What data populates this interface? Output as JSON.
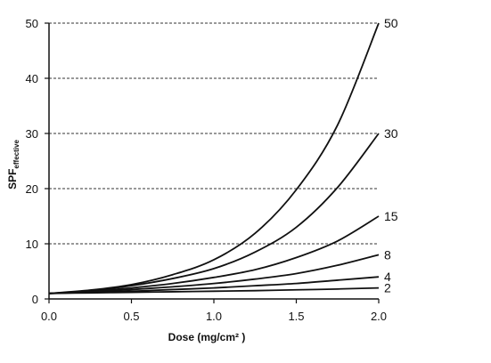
{
  "chart_data": {
    "type": "line",
    "xlabel": "Dose (mg/cm² )",
    "ylabel_main": "SPF",
    "ylabel_sub": "effective",
    "xlim": [
      0.0,
      2.0
    ],
    "ylim": [
      0,
      50
    ],
    "xticks": [
      "0.0",
      "0.5",
      "1.0",
      "1.5",
      "2.0"
    ],
    "yticks": [
      "0",
      "10",
      "20",
      "30",
      "40",
      "50"
    ],
    "grid": "horizontal dashed",
    "series": [
      {
        "name": "50",
        "x": [
          0,
          0.25,
          0.5,
          0.75,
          1.0,
          1.25,
          1.5,
          1.75,
          2.0
        ],
        "y": [
          1.0,
          1.6,
          2.6,
          4.4,
          7.1,
          11.9,
          19.8,
          31.5,
          50.0
        ]
      },
      {
        "name": "30",
        "x": [
          0,
          0.25,
          0.5,
          0.75,
          1.0,
          1.25,
          1.5,
          1.75,
          2.0
        ],
        "y": [
          1.0,
          1.5,
          2.4,
          3.7,
          5.5,
          8.5,
          13.0,
          20.2,
          30.0
        ]
      },
      {
        "name": "15",
        "x": [
          0,
          0.25,
          0.5,
          0.75,
          1.0,
          1.25,
          1.5,
          1.75,
          2.0
        ],
        "y": [
          1.0,
          1.4,
          2.0,
          2.8,
          3.9,
          5.3,
          7.5,
          10.5,
          15.0
        ]
      },
      {
        "name": "8",
        "x": [
          0,
          0.25,
          0.5,
          0.75,
          1.0,
          1.25,
          1.5,
          1.75,
          2.0
        ],
        "y": [
          1.0,
          1.3,
          1.7,
          2.2,
          2.8,
          3.6,
          4.6,
          6.1,
          8.0
        ]
      },
      {
        "name": "4",
        "x": [
          0,
          0.25,
          0.5,
          0.75,
          1.0,
          1.25,
          1.5,
          1.75,
          2.0
        ],
        "y": [
          1.0,
          1.2,
          1.4,
          1.7,
          2.0,
          2.4,
          2.8,
          3.4,
          4.0
        ]
      },
      {
        "name": "2",
        "x": [
          0,
          0.25,
          0.5,
          0.75,
          1.0,
          1.25,
          1.5,
          1.75,
          2.0
        ],
        "y": [
          1.0,
          1.1,
          1.2,
          1.3,
          1.4,
          1.5,
          1.65,
          1.8,
          2.0
        ]
      }
    ]
  }
}
